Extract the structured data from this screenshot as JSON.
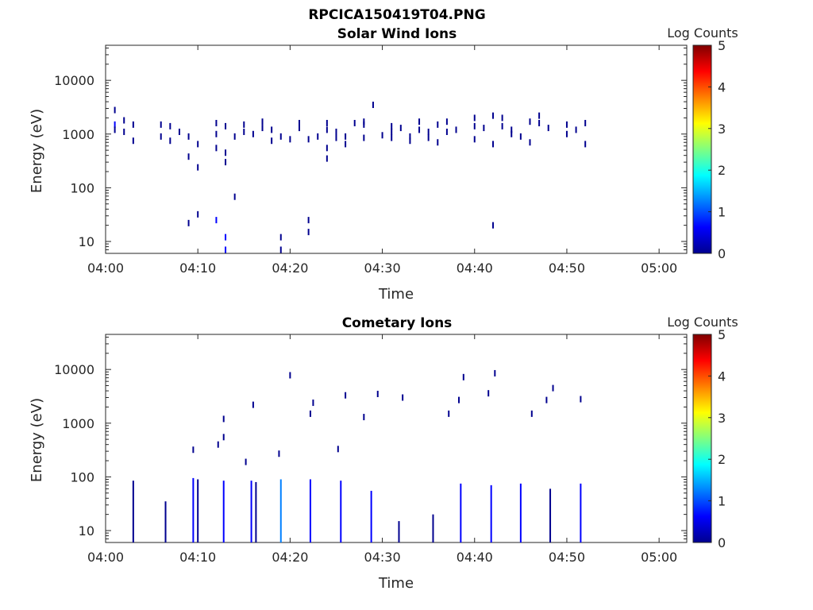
{
  "figure_title": "RPCICA150419T04.PNG",
  "colors": {
    "colormap": [
      "#00008f",
      "#0000ff",
      "#0080ff",
      "#00ffff",
      "#80ff80",
      "#ffff00",
      "#ff8000",
      "#ff0000",
      "#800000"
    ],
    "axis": "#262626"
  },
  "chart_data": [
    {
      "type": "heatmap",
      "title": "Solar Wind Ions",
      "xlabel": "Time",
      "ylabel": "Energy (eV)",
      "y_scale": "log",
      "xlim": [
        "04:00",
        "05:03"
      ],
      "ylim": [
        6,
        45000
      ],
      "x_ticks": [
        "04:00",
        "04:10",
        "04:20",
        "04:30",
        "04:40",
        "04:50",
        "05:00"
      ],
      "y_ticks": [
        "10",
        "100",
        "1000",
        "10000"
      ],
      "colorbar": {
        "label": "Log Counts",
        "range": [
          0,
          5
        ],
        "ticks": [
          "0",
          "1",
          "2",
          "3",
          "4",
          "5"
        ]
      },
      "points": [
        {
          "t": "04:01",
          "e": 2800,
          "c": 0.2
        },
        {
          "t": "04:01",
          "e": 1500,
          "c": 0.4
        },
        {
          "t": "04:01",
          "e": 1200,
          "c": 0.3
        },
        {
          "t": "04:02",
          "e": 1800,
          "c": 0.3
        },
        {
          "t": "04:02",
          "e": 1100,
          "c": 0.2
        },
        {
          "t": "04:03",
          "e": 1500,
          "c": 0.2
        },
        {
          "t": "04:03",
          "e": 750,
          "c": 0.1
        },
        {
          "t": "04:06",
          "e": 1500,
          "c": 0.2
        },
        {
          "t": "04:06",
          "e": 900,
          "c": 0.2
        },
        {
          "t": "04:07",
          "e": 1400,
          "c": 0.2
        },
        {
          "t": "04:07",
          "e": 750,
          "c": 0.2
        },
        {
          "t": "04:08",
          "e": 1100,
          "c": 0.3
        },
        {
          "t": "04:09",
          "e": 900,
          "c": 0.2
        },
        {
          "t": "04:09",
          "e": 380,
          "c": 0.1
        },
        {
          "t": "04:09",
          "e": 22,
          "c": 0.3
        },
        {
          "t": "04:10",
          "e": 650,
          "c": 0.2
        },
        {
          "t": "04:10",
          "e": 240,
          "c": 0.2
        },
        {
          "t": "04:10",
          "e": 32,
          "c": 0.2
        },
        {
          "t": "04:12",
          "e": 1600,
          "c": 0.2
        },
        {
          "t": "04:12",
          "e": 1000,
          "c": 0.2
        },
        {
          "t": "04:12",
          "e": 550,
          "c": 0.2
        },
        {
          "t": "04:12",
          "e": 25,
          "c": 0.4
        },
        {
          "t": "04:13",
          "e": 450,
          "c": 0.3
        },
        {
          "t": "04:13",
          "e": 300,
          "c": 0.2
        },
        {
          "t": "04:13",
          "e": 12,
          "c": 0.4
        },
        {
          "t": "04:13",
          "e": 7,
          "c": 0.4
        },
        {
          "t": "04:13",
          "e": 1400,
          "c": 0.2
        },
        {
          "t": "04:14",
          "e": 900,
          "c": 0.2
        },
        {
          "t": "04:14",
          "e": 68,
          "c": 0.1
        },
        {
          "t": "04:15",
          "e": 1500,
          "c": 0.2
        },
        {
          "t": "04:15",
          "e": 1100,
          "c": 0.2
        },
        {
          "t": "04:16",
          "e": 1000,
          "c": 0.2
        },
        {
          "t": "04:17",
          "e": 1700,
          "c": 0.3
        },
        {
          "t": "04:17",
          "e": 1300,
          "c": 0.2
        },
        {
          "t": "04:18",
          "e": 750,
          "c": 0.2
        },
        {
          "t": "04:18",
          "e": 1200,
          "c": 0.2
        },
        {
          "t": "04:19",
          "e": 900,
          "c": 0.2
        },
        {
          "t": "04:19",
          "e": 12,
          "c": 0.3
        },
        {
          "t": "04:19",
          "e": 7,
          "c": 0.3
        },
        {
          "t": "04:20",
          "e": 800,
          "c": 0.2
        },
        {
          "t": "04:21",
          "e": 1300,
          "c": 0.2
        },
        {
          "t": "04:21",
          "e": 1600,
          "c": 0.2
        },
        {
          "t": "04:22",
          "e": 800,
          "c": 0.2
        },
        {
          "t": "04:22",
          "e": 25,
          "c": 0.3
        },
        {
          "t": "04:22",
          "e": 15,
          "c": 0.3
        },
        {
          "t": "04:23",
          "e": 900,
          "c": 0.2
        },
        {
          "t": "04:24",
          "e": 1600,
          "c": 0.3
        },
        {
          "t": "04:24",
          "e": 1200,
          "c": 0.2
        },
        {
          "t": "04:24",
          "e": 550,
          "c": 0.2
        },
        {
          "t": "04:24",
          "e": 350,
          "c": 0.2
        },
        {
          "t": "04:25",
          "e": 1100,
          "c": 0.2
        },
        {
          "t": "04:25",
          "e": 850,
          "c": 0.2
        },
        {
          "t": "04:26",
          "e": 900,
          "c": 0.2
        },
        {
          "t": "04:26",
          "e": 650,
          "c": 0.2
        },
        {
          "t": "04:27",
          "e": 1600,
          "c": 0.2
        },
        {
          "t": "04:28",
          "e": 1700,
          "c": 0.3
        },
        {
          "t": "04:28",
          "e": 1500,
          "c": 0.3
        },
        {
          "t": "04:28",
          "e": 850,
          "c": 0.1
        },
        {
          "t": "04:29",
          "e": 3500,
          "c": 0.2
        },
        {
          "t": "04:30",
          "e": 950,
          "c": 0.2
        },
        {
          "t": "04:31",
          "e": 1400,
          "c": 0.2
        },
        {
          "t": "04:31",
          "e": 1100,
          "c": 0.2
        },
        {
          "t": "04:31",
          "e": 850,
          "c": 0.2
        },
        {
          "t": "04:32",
          "e": 1300,
          "c": 0.2
        },
        {
          "t": "04:33",
          "e": 900,
          "c": 0.2
        },
        {
          "t": "04:33",
          "e": 750,
          "c": 0.2
        },
        {
          "t": "04:34",
          "e": 1700,
          "c": 0.2
        },
        {
          "t": "04:34",
          "e": 1200,
          "c": 0.2
        },
        {
          "t": "04:35",
          "e": 1100,
          "c": 0.2
        },
        {
          "t": "04:35",
          "e": 850,
          "c": 0.2
        },
        {
          "t": "04:36",
          "e": 700,
          "c": 0.2
        },
        {
          "t": "04:36",
          "e": 1500,
          "c": 0.2
        },
        {
          "t": "04:37",
          "e": 1700,
          "c": 0.2
        },
        {
          "t": "04:37",
          "e": 1100,
          "c": 0.2
        },
        {
          "t": "04:38",
          "e": 1200,
          "c": 0.2
        },
        {
          "t": "04:40",
          "e": 2000,
          "c": 0.3
        },
        {
          "t": "04:40",
          "e": 1400,
          "c": 0.2
        },
        {
          "t": "04:40",
          "e": 800,
          "c": 0.2
        },
        {
          "t": "04:41",
          "e": 1300,
          "c": 0.2
        },
        {
          "t": "04:42",
          "e": 2200,
          "c": 0.2
        },
        {
          "t": "04:42",
          "e": 650,
          "c": 0.2
        },
        {
          "t": "04:42",
          "e": 20,
          "c": 0.3
        },
        {
          "t": "04:43",
          "e": 2000,
          "c": 0.2
        },
        {
          "t": "04:43",
          "e": 1400,
          "c": 0.3
        },
        {
          "t": "04:44",
          "e": 1200,
          "c": 0.2
        },
        {
          "t": "04:44",
          "e": 1000,
          "c": 0.2
        },
        {
          "t": "04:45",
          "e": 900,
          "c": 0.3
        },
        {
          "t": "04:46",
          "e": 700,
          "c": 0.2
        },
        {
          "t": "04:46",
          "e": 1700,
          "c": 0.2
        },
        {
          "t": "04:47",
          "e": 2200,
          "c": 0.3
        },
        {
          "t": "04:47",
          "e": 1600,
          "c": 0.2
        },
        {
          "t": "04:48",
          "e": 1300,
          "c": 0.2
        },
        {
          "t": "04:50",
          "e": 1500,
          "c": 0.2
        },
        {
          "t": "04:50",
          "e": 1000,
          "c": 0.3
        },
        {
          "t": "04:51",
          "e": 1200,
          "c": 0.2
        },
        {
          "t": "04:52",
          "e": 1600,
          "c": 0.2
        },
        {
          "t": "04:52",
          "e": 650,
          "c": 0.2
        }
      ]
    },
    {
      "type": "heatmap",
      "title": "Cometary Ions",
      "xlabel": "Time",
      "ylabel": "Energy (eV)",
      "y_scale": "log",
      "xlim": [
        "04:00",
        "05:03"
      ],
      "ylim": [
        6,
        45000
      ],
      "x_ticks": [
        "04:00",
        "04:10",
        "04:20",
        "04:30",
        "04:40",
        "04:50",
        "05:00"
      ],
      "y_ticks": [
        "10",
        "100",
        "1000",
        "10000"
      ],
      "colorbar": {
        "label": "Log Counts",
        "range": [
          0,
          5
        ],
        "ticks": [
          "0",
          "1",
          "2",
          "3",
          "4",
          "5"
        ]
      },
      "columns": [
        {
          "t": "04:03",
          "e_min": 6,
          "e_max": 85,
          "c": 0.3
        },
        {
          "t": "04:06.5",
          "e_min": 6,
          "e_max": 35,
          "c": 0.3
        },
        {
          "t": "04:09.5",
          "e_min": 6,
          "e_max": 95,
          "c": 0.4
        },
        {
          "t": "04:10",
          "e_min": 6,
          "e_max": 90,
          "c": 0.3
        },
        {
          "t": "04:12.8",
          "e_min": 6,
          "e_max": 85,
          "c": 0.8
        },
        {
          "t": "04:15.8",
          "e_min": 6,
          "e_max": 85,
          "c": 0.6
        },
        {
          "t": "04:16.3",
          "e_min": 6,
          "e_max": 80,
          "c": 0.3
        },
        {
          "t": "04:19",
          "e_min": 6,
          "e_max": 90,
          "c": 1.0
        },
        {
          "t": "04:22.2",
          "e_min": 6,
          "e_max": 90,
          "c": 0.7
        },
        {
          "t": "04:25.5",
          "e_min": 6,
          "e_max": 85,
          "c": 0.7
        },
        {
          "t": "04:28.8",
          "e_min": 6,
          "e_max": 55,
          "c": 0.4
        },
        {
          "t": "04:31.8",
          "e_min": 6,
          "e_max": 15,
          "c": 0.3
        },
        {
          "t": "04:35.5",
          "e_min": 6,
          "e_max": 20,
          "c": 0.3
        },
        {
          "t": "04:38.5",
          "e_min": 6,
          "e_max": 75,
          "c": 0.4
        },
        {
          "t": "04:41.8",
          "e_min": 6,
          "e_max": 70,
          "c": 0.5
        },
        {
          "t": "04:45",
          "e_min": 6,
          "e_max": 75,
          "c": 0.4
        },
        {
          "t": "04:48.2",
          "e_min": 6,
          "e_max": 60,
          "c": 0.3
        },
        {
          "t": "04:51.5",
          "e_min": 6,
          "e_max": 75,
          "c": 0.4
        }
      ],
      "points": [
        {
          "t": "04:09.5",
          "e": 320,
          "c": 0.2
        },
        {
          "t": "04:12.8",
          "e": 1200,
          "c": 0.2
        },
        {
          "t": "04:12.8",
          "e": 550,
          "c": 0.2
        },
        {
          "t": "04:12.2",
          "e": 400,
          "c": 0.2
        },
        {
          "t": "04:15.2",
          "e": 190,
          "c": 0.2
        },
        {
          "t": "04:16",
          "e": 2200,
          "c": 0.3
        },
        {
          "t": "04:18.8",
          "e": 270,
          "c": 0.2
        },
        {
          "t": "04:20",
          "e": 7800,
          "c": 0.2
        },
        {
          "t": "04:22.2",
          "e": 1500,
          "c": 0.2
        },
        {
          "t": "04:22.5",
          "e": 2400,
          "c": 0.2
        },
        {
          "t": "04:25.2",
          "e": 330,
          "c": 0.2
        },
        {
          "t": "04:26",
          "e": 3300,
          "c": 0.2
        },
        {
          "t": "04:28",
          "e": 1300,
          "c": 0.2
        },
        {
          "t": "04:29.5",
          "e": 3500,
          "c": 0.2
        },
        {
          "t": "04:32.2",
          "e": 3000,
          "c": 0.2
        },
        {
          "t": "04:37.2",
          "e": 1500,
          "c": 0.2
        },
        {
          "t": "04:38.3",
          "e": 2700,
          "c": 0.3
        },
        {
          "t": "04:38.8",
          "e": 7200,
          "c": 0.2
        },
        {
          "t": "04:41.5",
          "e": 3600,
          "c": 0.3
        },
        {
          "t": "04:42.2",
          "e": 8500,
          "c": 0.2
        },
        {
          "t": "04:46.2",
          "e": 1500,
          "c": 0.2
        },
        {
          "t": "04:47.8",
          "e": 2700,
          "c": 0.3
        },
        {
          "t": "04:48.5",
          "e": 4500,
          "c": 0.2
        },
        {
          "t": "04:51.5",
          "e": 2800,
          "c": 0.2
        }
      ]
    }
  ]
}
